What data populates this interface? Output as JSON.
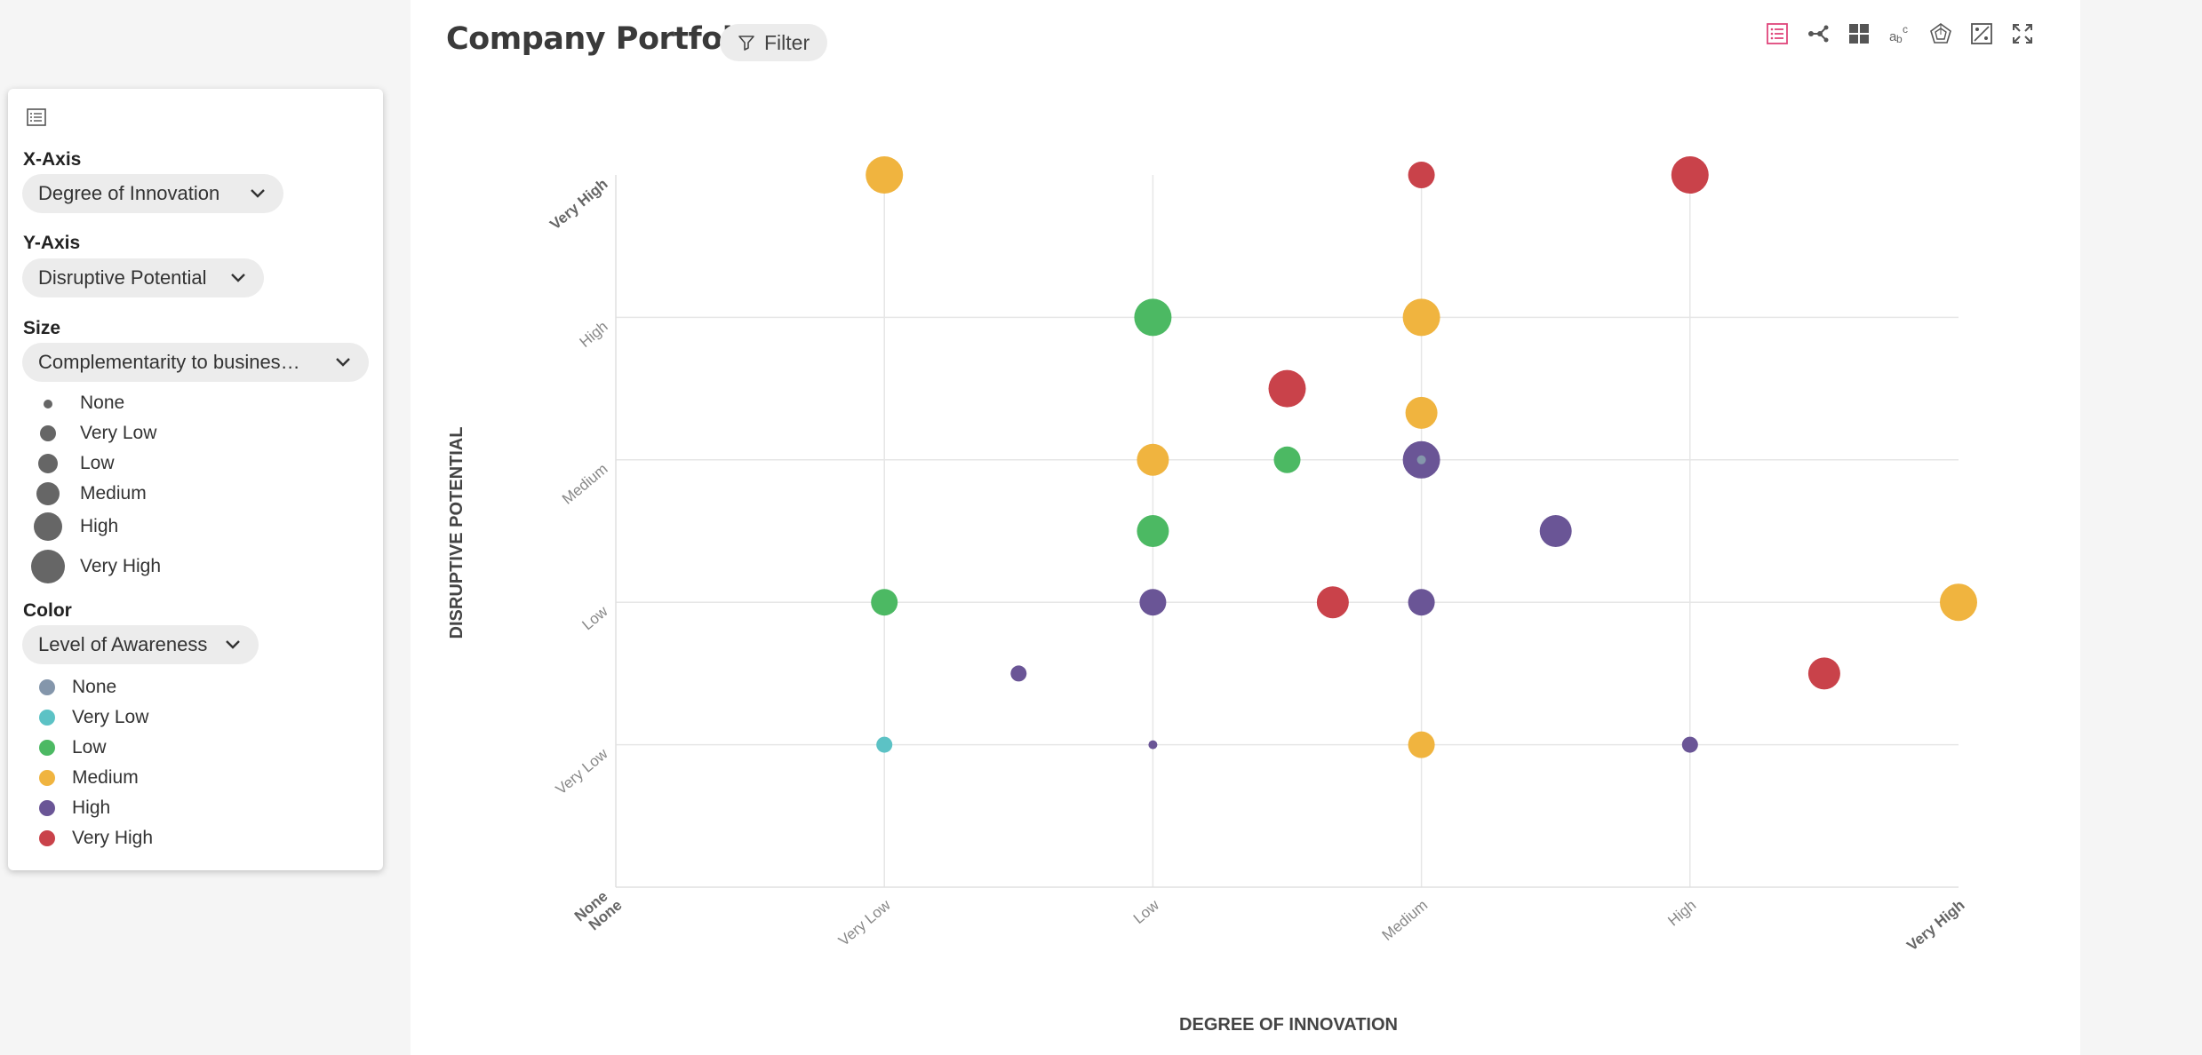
{
  "header": {
    "title": "Company Portfolio",
    "filter_label": "Filter"
  },
  "toolbar": {
    "buttons": [
      "list-view-icon",
      "network-icon",
      "grid-icon",
      "word-cloud-icon",
      "radar-icon",
      "scatter-plot-icon",
      "fullscreen-icon"
    ],
    "active": "list-view-icon",
    "active_color": "#e0457b"
  },
  "sidebar": {
    "x_axis": {
      "label": "X-Axis",
      "value": "Degree of Innovation"
    },
    "y_axis": {
      "label": "Y-Axis",
      "value": "Disruptive Potential"
    },
    "size": {
      "label": "Size",
      "value": "Complementarity to busines…",
      "legend": [
        "None",
        "Very Low",
        "Low",
        "Medium",
        "High",
        "Very High"
      ]
    },
    "color": {
      "label": "Color",
      "value": "Level of Awareness",
      "legend": [
        {
          "label": "None",
          "color": "#8496ab"
        },
        {
          "label": "Very Low",
          "color": "#5cc2c5"
        },
        {
          "label": "Low",
          "color": "#4cb963"
        },
        {
          "label": "Medium",
          "color": "#f0b43f"
        },
        {
          "label": "High",
          "color": "#6a5596"
        },
        {
          "label": "Very High",
          "color": "#c9424a"
        }
      ]
    }
  },
  "chart_data": {
    "type": "scatter",
    "xlabel": "DEGREE OF INNOVATION",
    "ylabel": "DISRUPTIVE POTENTIAL",
    "levels": [
      "None",
      "Very Low",
      "Low",
      "Medium",
      "High",
      "Very High"
    ],
    "xlim": [
      0,
      5
    ],
    "ylim": [
      0,
      5
    ],
    "grid": true,
    "colors": {
      "None": "#8496ab",
      "Very Low": "#5cc2c5",
      "Low": "#4cb963",
      "Medium": "#f0b43f",
      "High": "#6a5596",
      "Very High": "#c9424a"
    },
    "points": [
      {
        "x": 1,
        "y": 5,
        "size": "Very High",
        "color": "Medium"
      },
      {
        "x": 3,
        "y": 5,
        "size": "Medium",
        "color": "Very High"
      },
      {
        "x": 4,
        "y": 5,
        "size": "Very High",
        "color": "Very High"
      },
      {
        "x": 2,
        "y": 4,
        "size": "Very High",
        "color": "Low"
      },
      {
        "x": 3,
        "y": 4,
        "size": "Very High",
        "color": "Medium"
      },
      {
        "x": 2.5,
        "y": 3.5,
        "size": "Very High",
        "color": "Very High"
      },
      {
        "x": 3,
        "y": 3.33,
        "size": "High",
        "color": "Medium"
      },
      {
        "x": 2,
        "y": 3,
        "size": "High",
        "color": "Medium"
      },
      {
        "x": 2.5,
        "y": 3,
        "size": "Medium",
        "color": "Low"
      },
      {
        "x": 3,
        "y": 3,
        "size": "Very High",
        "color": "High"
      },
      {
        "x": 3,
        "y": 3,
        "size": "None",
        "color": "None"
      },
      {
        "x": 2,
        "y": 2.5,
        "size": "High",
        "color": "Low"
      },
      {
        "x": 3.5,
        "y": 2.5,
        "size": "High",
        "color": "High"
      },
      {
        "x": 1,
        "y": 2,
        "size": "Medium",
        "color": "Low"
      },
      {
        "x": 2,
        "y": 2,
        "size": "Medium",
        "color": "High"
      },
      {
        "x": 2.67,
        "y": 2,
        "size": "High",
        "color": "Very High"
      },
      {
        "x": 3,
        "y": 2,
        "size": "Medium",
        "color": "High"
      },
      {
        "x": 5,
        "y": 2,
        "size": "Very High",
        "color": "Medium"
      },
      {
        "x": 1.5,
        "y": 1.5,
        "size": "Very Low",
        "color": "High"
      },
      {
        "x": 4.5,
        "y": 1.5,
        "size": "High",
        "color": "Very High"
      },
      {
        "x": 1,
        "y": 1,
        "size": "Very Low",
        "color": "Very Low"
      },
      {
        "x": 2,
        "y": 1,
        "size": "None",
        "color": "High"
      },
      {
        "x": 3,
        "y": 1,
        "size": "Medium",
        "color": "Medium"
      },
      {
        "x": 4,
        "y": 1,
        "size": "Very Low",
        "color": "High"
      }
    ]
  }
}
